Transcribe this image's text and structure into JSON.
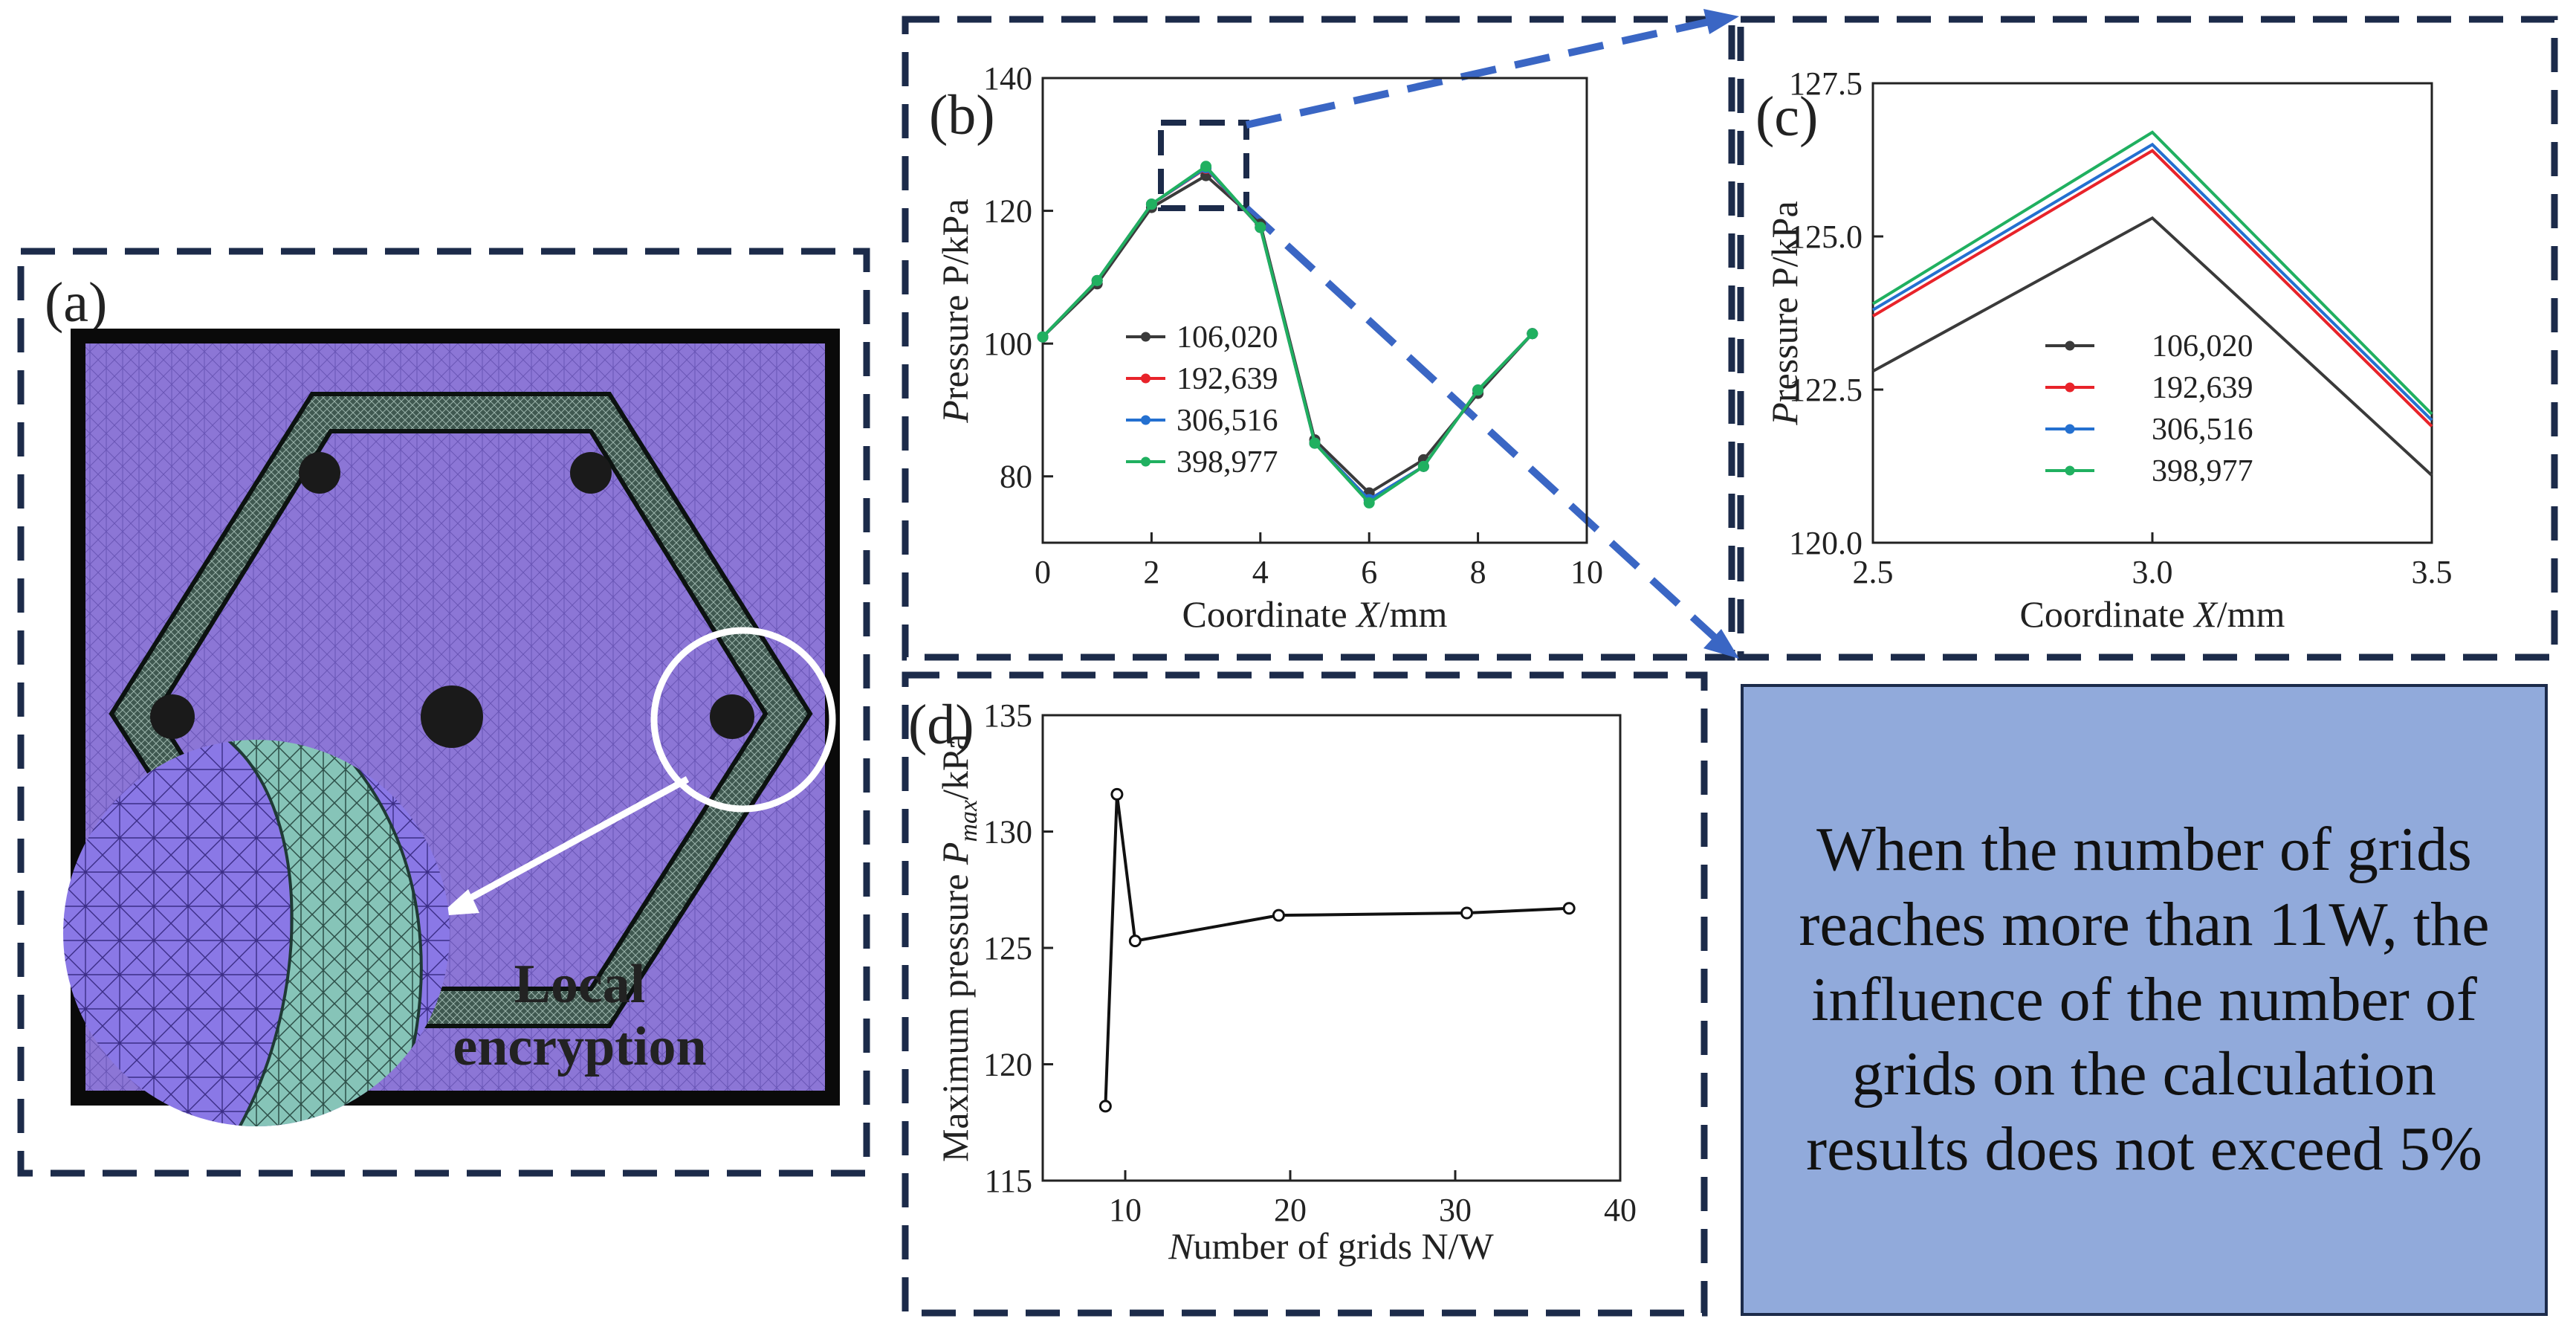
{
  "panel_labels": {
    "a": "(a)",
    "b": "(b)",
    "c": "(c)",
    "d": "(d)"
  },
  "mesh_panel": {
    "annotation_line1": "Local",
    "annotation_line2": "encryption"
  },
  "callout": {
    "text": "When the number of grids reaches more than 11W, the influence of the number of grids on the calculation results does not exceed 5%"
  },
  "colors": {
    "frame": "#1c2b4a",
    "zoom_arrow": "#3a66c4",
    "callout_bg": "#91aadb",
    "series": [
      "#3a3a3a",
      "#e8232a",
      "#2470d0",
      "#20b060"
    ]
  },
  "chart_data": [
    {
      "id": "b",
      "type": "line",
      "xlabel": "Coordinate X/mm",
      "ylabel": "Pressure P/kPa",
      "xlim": [
        0,
        10
      ],
      "ylim": [
        70,
        140
      ],
      "xticks": [
        0,
        2,
        4,
        6,
        8,
        10
      ],
      "yticks": [
        80,
        100,
        120,
        140
      ],
      "x": [
        0,
        1,
        2,
        3,
        4,
        5,
        6,
        7,
        8,
        9
      ],
      "series": [
        {
          "name": "106,020",
          "values": [
            101,
            109,
            120.5,
            125.3,
            118,
            85.5,
            77.5,
            82.5,
            92.5,
            101.5
          ]
        },
        {
          "name": "192,639",
          "values": [
            101,
            109.5,
            121,
            126.4,
            117.5,
            85,
            76.5,
            81.5,
            93,
            101.5
          ]
        },
        {
          "name": "306,516",
          "values": [
            101,
            109.5,
            121,
            126.5,
            117.5,
            85,
            76.5,
            81.5,
            93,
            101.5
          ]
        },
        {
          "name": "398,977",
          "values": [
            101,
            109.5,
            121,
            126.7,
            117.5,
            85,
            76,
            81.5,
            93,
            101.5
          ]
        }
      ],
      "legend": "center-left"
    },
    {
      "id": "c",
      "type": "line",
      "xlabel": "Coordinate X/mm",
      "ylabel": "Pressure P/kPa",
      "xlim": [
        2.5,
        3.5
      ],
      "ylim": [
        120.0,
        127.5
      ],
      "xticks": [
        2.5,
        3.0,
        3.5
      ],
      "yticks": [
        120.0,
        122.5,
        125.0,
        127.5
      ],
      "x": [
        2.5,
        3.0,
        3.5
      ],
      "series": [
        {
          "name": "106,020",
          "values": [
            122.8,
            125.3,
            121.1
          ]
        },
        {
          "name": "192,639",
          "values": [
            123.7,
            126.4,
            121.9
          ]
        },
        {
          "name": "306,516",
          "values": [
            123.8,
            126.5,
            122.0
          ]
        },
        {
          "name": "398,977",
          "values": [
            123.9,
            126.7,
            122.1
          ]
        }
      ],
      "legend": "center"
    },
    {
      "id": "d",
      "type": "line",
      "xlabel": "Number of grids N/W",
      "ylabel": "Maximum pressure Pmax/kPa",
      "xlim": [
        5,
        40
      ],
      "ylim": [
        115,
        135
      ],
      "xticks": [
        10,
        20,
        30,
        40
      ],
      "yticks": [
        115,
        120,
        125,
        130,
        135
      ],
      "series": [
        {
          "name": "Maximum pressure",
          "x": [
            8.8,
            9.5,
            10.6,
            19.3,
            30.7,
            36.9
          ],
          "values": [
            118.2,
            131.6,
            125.3,
            126.4,
            126.5,
            126.7
          ]
        }
      ]
    }
  ]
}
